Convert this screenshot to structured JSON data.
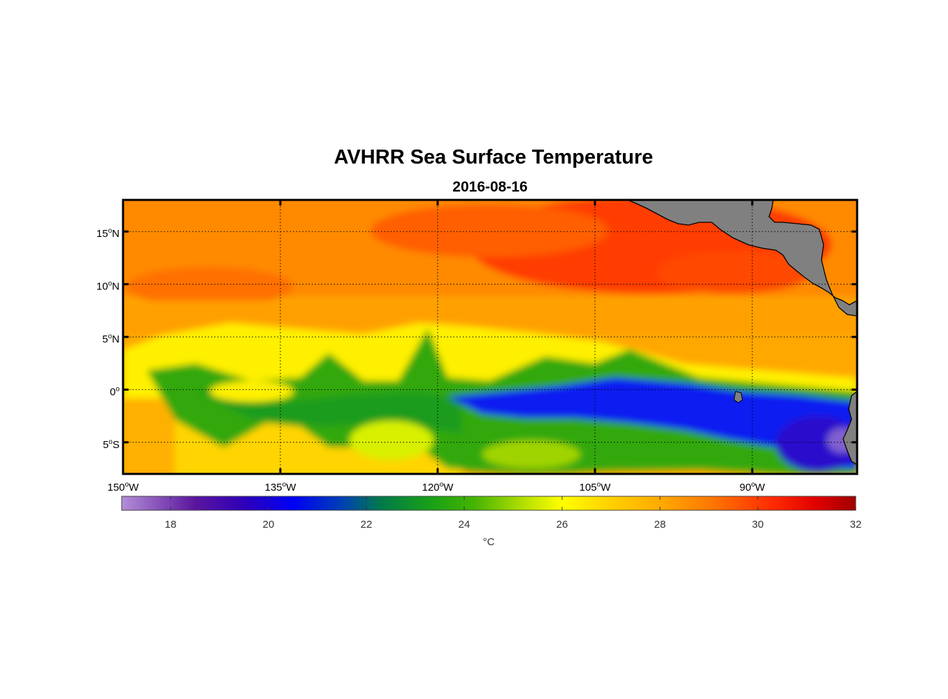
{
  "map": {
    "title": "AVHRR Sea Surface Temperature",
    "subtitle": "2016-08-16",
    "projection": "equirectangular",
    "lon_range": [
      -150,
      -80
    ],
    "lat_range": [
      -8,
      18
    ],
    "grid": true,
    "land_color": "#808080",
    "lat_ticks": [
      {
        "value": 15,
        "num": "15",
        "hemi": "N"
      },
      {
        "value": 10,
        "num": "10",
        "hemi": "N"
      },
      {
        "value": 5,
        "num": "5",
        "hemi": "N"
      },
      {
        "value": 0,
        "num": "0",
        "hemi": ""
      },
      {
        "value": -5,
        "num": "5",
        "hemi": "S"
      }
    ],
    "lon_ticks": [
      {
        "value": -150,
        "num": "150",
        "hemi": "W"
      },
      {
        "value": -135,
        "num": "135",
        "hemi": "W"
      },
      {
        "value": -120,
        "num": "120",
        "hemi": "W"
      },
      {
        "value": -105,
        "num": "105",
        "hemi": "W"
      },
      {
        "value": -90,
        "num": "90",
        "hemi": "W"
      }
    ],
    "degree_symbol": "o"
  },
  "colorbar": {
    "label": "°C",
    "range": [
      17,
      32
    ],
    "ticks": [
      18,
      20,
      22,
      24,
      26,
      28,
      30,
      32
    ],
    "colormap": [
      [
        17,
        "#b38fd6"
      ],
      [
        18.5,
        "#5a159e"
      ],
      [
        19.5,
        "#2f00b8"
      ],
      [
        20.5,
        "#0000f5"
      ],
      [
        21.5,
        "#0040b5"
      ],
      [
        22.3,
        "#007a4a"
      ],
      [
        23.3,
        "#18a018"
      ],
      [
        24.2,
        "#44b400"
      ],
      [
        25.3,
        "#bde300"
      ],
      [
        26,
        "#ffff00"
      ],
      [
        27,
        "#ffd000"
      ],
      [
        28,
        "#ffaa00"
      ],
      [
        29,
        "#ff7a00"
      ],
      [
        30.3,
        "#ff2a00"
      ],
      [
        31.2,
        "#e00000"
      ],
      [
        32,
        "#a00000"
      ]
    ]
  }
}
